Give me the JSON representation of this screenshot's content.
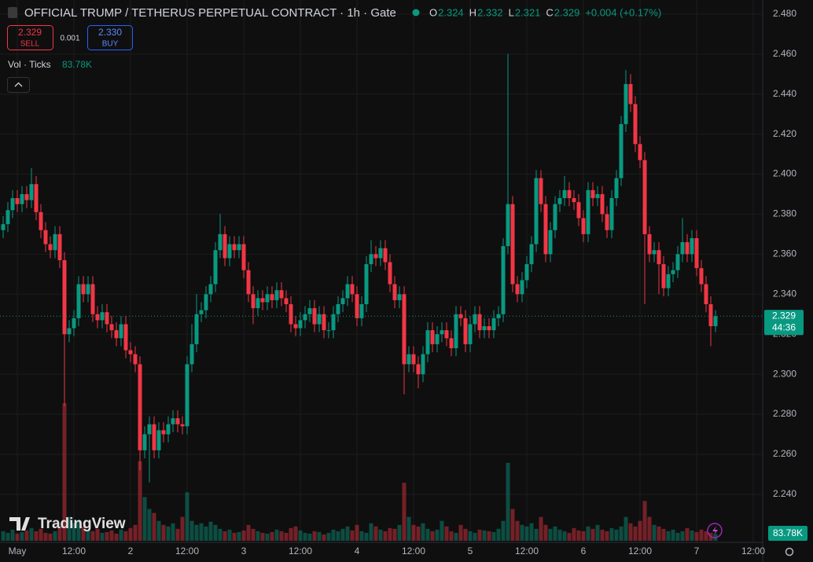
{
  "chart_data": {
    "type": "candlestick",
    "title": "OFFICIAL TRUMP / TETHERUS PERPETUAL CONTRACT · 1h · Gate",
    "ohlc_labels": [
      "O",
      "H",
      "L",
      "C"
    ],
    "change": "+0.004 (+0.17%)",
    "sell_price": "2.329",
    "sell_label": "SELL",
    "spread": "0.001",
    "buy_price": "2.330",
    "buy_label": "BUY",
    "volume_title": "Vol · Ticks",
    "volume_last_label": "83.78K",
    "last_price_label": "2.329",
    "countdown": "44:36",
    "logo": "TradingView",
    "up_color": "#089981",
    "down_color": "#f23645",
    "grid": true,
    "ylim": [
      2.216,
      2.487
    ],
    "yticks": [
      {
        "value": 2.48,
        "label": "2.480"
      },
      {
        "value": 2.46,
        "label": "2.460"
      },
      {
        "value": 2.44,
        "label": "2.440"
      },
      {
        "value": 2.42,
        "label": "2.420"
      },
      {
        "value": 2.4,
        "label": "2.400"
      },
      {
        "value": 2.38,
        "label": "2.380"
      },
      {
        "value": 2.36,
        "label": "2.360"
      },
      {
        "value": 2.34,
        "label": "2.340"
      },
      {
        "value": 2.32,
        "label": "2.320"
      },
      {
        "value": 2.3,
        "label": "2.300"
      },
      {
        "value": 2.28,
        "label": "2.280"
      },
      {
        "value": 2.26,
        "label": "2.260"
      },
      {
        "value": 2.24,
        "label": "2.240"
      }
    ],
    "categories": [
      null,
      null,
      null,
      "May",
      null,
      null,
      null,
      null,
      null,
      null,
      null,
      null,
      null,
      null,
      null,
      "12:00",
      null,
      null,
      null,
      null,
      null,
      null,
      null,
      null,
      null,
      null,
      null,
      "2",
      null,
      null,
      null,
      null,
      null,
      null,
      null,
      null,
      null,
      null,
      null,
      "12:00",
      null,
      null,
      null,
      null,
      null,
      null,
      null,
      null,
      null,
      null,
      null,
      "3",
      null,
      null,
      null,
      null,
      null,
      null,
      null,
      null,
      null,
      null,
      null,
      "12:00",
      null,
      null,
      null,
      null,
      null,
      null,
      null,
      null,
      null,
      null,
      null,
      "4",
      null,
      null,
      null,
      null,
      null,
      null,
      null,
      null,
      null,
      null,
      null,
      "12:00",
      null,
      null,
      null,
      null,
      null,
      null,
      null,
      null,
      null,
      null,
      null,
      "5",
      null,
      null,
      null,
      null,
      null,
      null,
      null,
      null,
      null,
      null,
      null,
      "12:00",
      null,
      null,
      null,
      null,
      null,
      null,
      null,
      null,
      null,
      null,
      null,
      "6",
      null,
      null,
      null,
      null,
      null,
      null,
      null,
      null,
      null,
      null,
      null,
      "12:00",
      null,
      null,
      null,
      null,
      null,
      null,
      null,
      null,
      null,
      null,
      null,
      "7",
      null,
      null,
      null,
      null,
      null,
      null,
      null,
      null,
      null,
      null,
      null,
      "12:00"
    ],
    "open": [
      2.372,
      2.375,
      2.382,
      2.388,
      2.385,
      2.39,
      2.387,
      2.395,
      2.381,
      2.372,
      2.365,
      2.362,
      2.37,
      2.357,
      2.32,
      2.323,
      2.328,
      2.345,
      2.34,
      2.345,
      2.33,
      2.327,
      2.331,
      2.325,
      2.322,
      2.318,
      2.325,
      2.312,
      2.31,
      2.305,
      2.262,
      2.27,
      2.275,
      2.262,
      2.272,
      2.27,
      2.275,
      2.278,
      2.275,
      2.274,
      2.305,
      2.315,
      2.33,
      2.332,
      2.34,
      2.345,
      2.362,
      2.37,
      2.358,
      2.365,
      2.362,
      2.365,
      2.352,
      2.34,
      2.333,
      2.338,
      2.336,
      2.34,
      2.337,
      2.342,
      2.338,
      2.335,
      2.325,
      2.323,
      2.327,
      2.33,
      2.333,
      2.325,
      2.33,
      2.322,
      2.322,
      2.33,
      2.335,
      2.338,
      2.345,
      2.34,
      2.328,
      2.335,
      2.355,
      2.36,
      2.358,
      2.363,
      2.356,
      2.345,
      2.337,
      2.34,
      2.305,
      2.31,
      2.305,
      2.3,
      2.31,
      2.322,
      2.315,
      2.32,
      2.322,
      2.318,
      2.313,
      2.33,
      2.328,
      2.315,
      2.325,
      2.33,
      2.322,
      2.324,
      2.322,
      2.328,
      2.33,
      2.364,
      2.385,
      2.345,
      2.34,
      2.347,
      2.355,
      2.365,
      2.398,
      2.385,
      2.36,
      2.372,
      2.385,
      2.388,
      2.392,
      2.388,
      2.386,
      2.378,
      2.37,
      2.392,
      2.388,
      2.39,
      2.38,
      2.372,
      2.388,
      2.398,
      2.425,
      2.445,
      2.435,
      2.415,
      2.407,
      2.37,
      2.36,
      2.362,
      2.355,
      2.343,
      2.35,
      2.352,
      2.36,
      2.366,
      2.36,
      2.368,
      2.353,
      2.345,
      2.335,
      2.324,
      null,
      null,
      null,
      null,
      null,
      null,
      null,
      null
    ],
    "high": [
      2.379,
      2.386,
      2.392,
      2.392,
      2.394,
      2.394,
      2.403,
      2.399,
      2.385,
      2.376,
      2.369,
      2.374,
      2.374,
      2.361,
      2.327,
      2.332,
      2.349,
      2.349,
      2.349,
      2.349,
      2.334,
      2.335,
      2.335,
      2.329,
      2.326,
      2.329,
      2.329,
      2.316,
      2.314,
      2.309,
      2.274,
      2.279,
      2.279,
      2.276,
      2.276,
      2.279,
      2.282,
      2.282,
      2.279,
      2.309,
      2.325,
      2.34,
      2.336,
      2.344,
      2.349,
      2.366,
      2.38,
      2.374,
      2.369,
      2.369,
      2.369,
      2.369,
      2.356,
      2.344,
      2.342,
      2.342,
      2.344,
      2.344,
      2.346,
      2.346,
      2.342,
      2.339,
      2.329,
      2.331,
      2.334,
      2.337,
      2.337,
      2.334,
      2.334,
      2.326,
      2.334,
      2.339,
      2.342,
      2.349,
      2.349,
      2.344,
      2.339,
      2.359,
      2.367,
      2.364,
      2.367,
      2.367,
      2.36,
      2.349,
      2.344,
      2.344,
      2.314,
      2.314,
      2.309,
      2.314,
      2.326,
      2.326,
      2.324,
      2.326,
      2.326,
      2.322,
      2.334,
      2.334,
      2.332,
      2.329,
      2.334,
      2.334,
      2.328,
      2.328,
      2.332,
      2.334,
      2.368,
      2.46,
      2.389,
      2.349,
      2.351,
      2.359,
      2.369,
      2.402,
      2.402,
      2.389,
      2.376,
      2.389,
      2.392,
      2.399,
      2.396,
      2.392,
      2.39,
      2.382,
      2.396,
      2.396,
      2.394,
      2.394,
      2.384,
      2.392,
      2.402,
      2.429,
      2.452,
      2.45,
      2.439,
      2.419,
      2.411,
      2.374,
      2.366,
      2.366,
      2.359,
      2.354,
      2.356,
      2.364,
      2.378,
      2.37,
      2.372,
      2.372,
      2.357,
      2.349,
      2.339,
      2.332,
      null,
      null,
      null,
      null,
      null,
      null,
      null,
      null
    ],
    "low": [
      2.368,
      2.371,
      2.378,
      2.381,
      2.381,
      2.383,
      2.383,
      2.377,
      2.368,
      2.361,
      2.358,
      2.358,
      2.353,
      2.284,
      2.316,
      2.319,
      2.324,
      2.336,
      2.336,
      2.326,
      2.323,
      2.323,
      2.321,
      2.318,
      2.314,
      2.314,
      2.308,
      2.306,
      2.301,
      2.252,
      2.258,
      2.246,
      2.258,
      2.258,
      2.266,
      2.266,
      2.271,
      2.271,
      2.27,
      2.27,
      2.301,
      2.311,
      2.326,
      2.328,
      2.336,
      2.341,
      2.358,
      2.354,
      2.354,
      2.358,
      2.358,
      2.348,
      2.336,
      2.325,
      2.329,
      2.332,
      2.332,
      2.333,
      2.333,
      2.334,
      2.331,
      2.321,
      2.319,
      2.319,
      2.323,
      2.326,
      2.321,
      2.321,
      2.318,
      2.318,
      2.318,
      2.326,
      2.331,
      2.334,
      2.336,
      2.324,
      2.324,
      2.331,
      2.351,
      2.354,
      2.354,
      2.352,
      2.341,
      2.333,
      2.333,
      2.29,
      2.301,
      2.301,
      2.293,
      2.296,
      2.306,
      2.311,
      2.311,
      2.316,
      2.314,
      2.309,
      2.309,
      2.324,
      2.311,
      2.311,
      2.321,
      2.318,
      2.318,
      2.318,
      2.318,
      2.324,
      2.326,
      2.36,
      2.341,
      2.336,
      2.336,
      2.343,
      2.351,
      2.361,
      2.381,
      2.356,
      2.356,
      2.368,
      2.381,
      2.384,
      2.384,
      2.382,
      2.374,
      2.366,
      2.366,
      2.384,
      2.384,
      2.376,
      2.368,
      2.368,
      2.384,
      2.394,
      2.421,
      2.431,
      2.411,
      2.403,
      2.335,
      2.356,
      2.356,
      2.34,
      2.339,
      2.339,
      2.346,
      2.348,
      2.356,
      2.356,
      2.356,
      2.349,
      2.341,
      2.331,
      2.314,
      2.321,
      null,
      null,
      null,
      null,
      null,
      null,
      null,
      null
    ],
    "close": [
      2.375,
      2.382,
      2.388,
      2.385,
      2.39,
      2.387,
      2.395,
      2.381,
      2.372,
      2.365,
      2.362,
      2.37,
      2.357,
      2.32,
      2.323,
      2.328,
      2.345,
      2.34,
      2.345,
      2.33,
      2.327,
      2.331,
      2.325,
      2.322,
      2.318,
      2.325,
      2.312,
      2.31,
      2.305,
      2.262,
      2.27,
      2.275,
      2.262,
      2.272,
      2.27,
      2.275,
      2.278,
      2.275,
      2.274,
      2.305,
      2.315,
      2.33,
      2.332,
      2.34,
      2.345,
      2.362,
      2.37,
      2.358,
      2.365,
      2.362,
      2.365,
      2.352,
      2.34,
      2.333,
      2.338,
      2.336,
      2.34,
      2.337,
      2.342,
      2.338,
      2.335,
      2.325,
      2.323,
      2.327,
      2.33,
      2.333,
      2.325,
      2.33,
      2.322,
      2.322,
      2.33,
      2.335,
      2.338,
      2.345,
      2.34,
      2.328,
      2.335,
      2.355,
      2.36,
      2.358,
      2.363,
      2.356,
      2.345,
      2.337,
      2.34,
      2.305,
      2.31,
      2.305,
      2.3,
      2.31,
      2.322,
      2.315,
      2.32,
      2.322,
      2.318,
      2.313,
      2.33,
      2.328,
      2.315,
      2.325,
      2.33,
      2.322,
      2.324,
      2.322,
      2.328,
      2.33,
      2.364,
      2.385,
      2.345,
      2.34,
      2.347,
      2.355,
      2.365,
      2.398,
      2.385,
      2.36,
      2.372,
      2.385,
      2.388,
      2.392,
      2.388,
      2.386,
      2.378,
      2.37,
      2.392,
      2.388,
      2.39,
      2.38,
      2.372,
      2.388,
      2.398,
      2.425,
      2.445,
      2.435,
      2.415,
      2.407,
      2.37,
      2.36,
      2.362,
      2.355,
      2.343,
      2.35,
      2.352,
      2.36,
      2.366,
      2.36,
      2.368,
      2.353,
      2.345,
      2.335,
      2.324,
      2.329,
      null,
      null,
      null,
      null,
      null,
      null,
      null,
      null
    ],
    "volume": [
      120000,
      100000,
      140000,
      90000,
      110000,
      130000,
      160000,
      120000,
      150000,
      100000,
      90000,
      120000,
      180000,
      1730000,
      300000,
      220000,
      250000,
      180000,
      140000,
      120000,
      150000,
      100000,
      110000,
      130000,
      90000,
      140000,
      120000,
      160000,
      200000,
      1000000,
      550000,
      400000,
      350000,
      250000,
      200000,
      180000,
      220000,
      150000,
      300000,
      610000,
      250000,
      200000,
      220000,
      180000,
      240000,
      200000,
      150000,
      120000,
      140000,
      100000,
      110000,
      130000,
      200000,
      150000,
      120000,
      100000,
      90000,
      110000,
      140000,
      120000,
      100000,
      160000,
      180000,
      130000,
      100000,
      90000,
      120000,
      110000,
      80000,
      100000,
      140000,
      120000,
      150000,
      180000,
      130000,
      200000,
      120000,
      100000,
      220000,
      180000,
      140000,
      120000,
      160000,
      150000,
      200000,
      730000,
      300000,
      200000,
      180000,
      220000,
      150000,
      120000,
      140000,
      250000,
      180000,
      120000,
      100000,
      200000,
      150000,
      120000,
      100000,
      140000,
      130000,
      120000,
      110000,
      150000,
      250000,
      980000,
      400000,
      250000,
      200000,
      180000,
      220000,
      150000,
      300000,
      200000,
      150000,
      180000,
      140000,
      120000,
      100000,
      160000,
      130000,
      120000,
      180000,
      150000,
      200000,
      140000,
      120000,
      160000,
      140000,
      180000,
      300000,
      220000,
      180000,
      250000,
      500000,
      300000,
      200000,
      180000,
      150000,
      120000,
      140000,
      100000,
      120000,
      160000,
      130000,
      110000,
      140000,
      120000,
      100000,
      83780,
      null,
      null,
      null,
      null,
      null,
      null,
      null,
      null
    ]
  }
}
